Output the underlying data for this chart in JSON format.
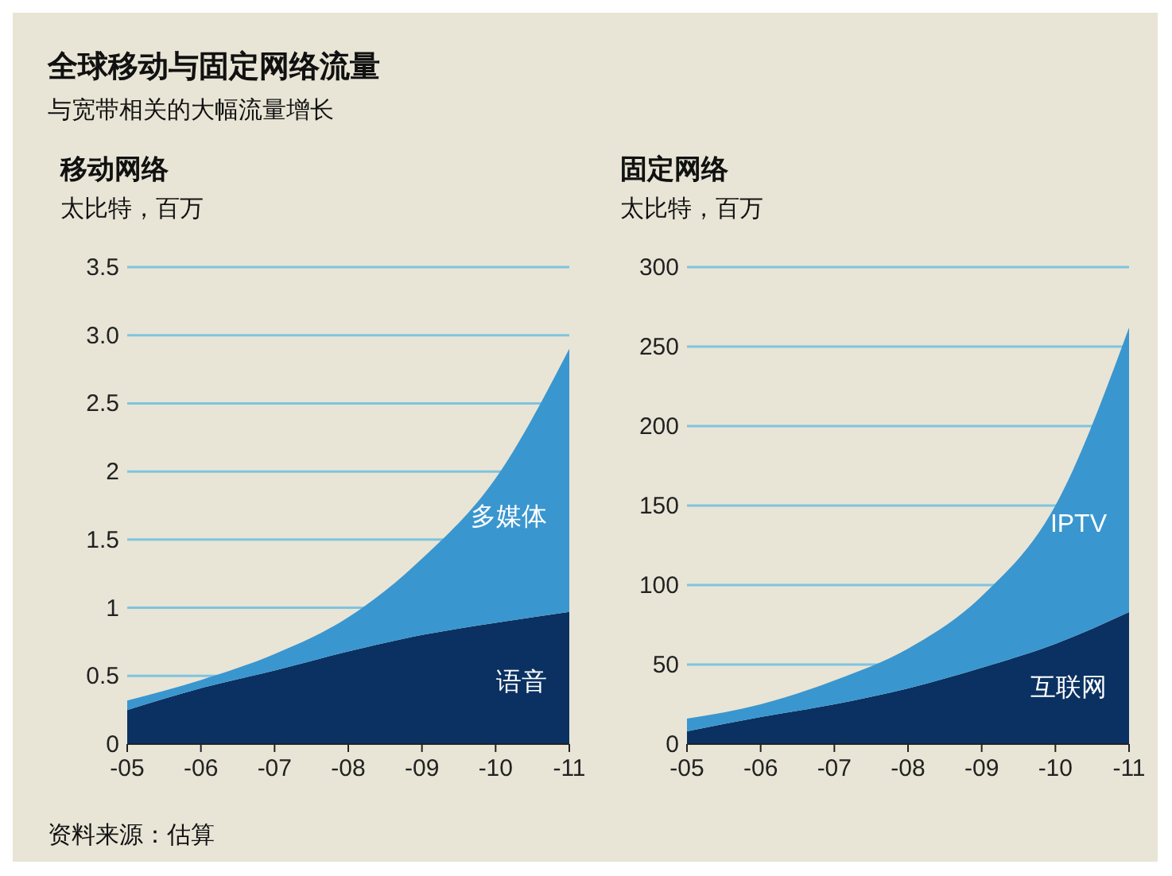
{
  "chart_data": [
    {
      "type": "other",
      "title": "全球移动与固定网络流量",
      "subtitle": "与宽带相关的大幅流量增长",
      "annotations": [
        "资料来源：估算"
      ]
    },
    {
      "type": "area",
      "stacked": true,
      "title": "移动网络",
      "ylabel": "太比特，百万",
      "categories": [
        "-05",
        "-06",
        "-07",
        "-08",
        "-09",
        "-10",
        "-11"
      ],
      "ylim": [
        0,
        3.5
      ],
      "yticks": [
        0,
        0.5,
        1,
        1.5,
        2,
        2.5,
        {
          "value": 3,
          "label": "3.0"
        },
        3.5
      ],
      "grid": "y",
      "series": [
        {
          "name": "语音",
          "color": "#0a3161",
          "values": [
            0.25,
            0.41,
            0.54,
            0.68,
            0.8,
            0.89,
            0.97
          ]
        },
        {
          "name": "多媒体",
          "color": "#3a96cf",
          "values": [
            0.07,
            0.06,
            0.12,
            0.25,
            0.56,
            1.06,
            1.93
          ]
        }
      ]
    },
    {
      "type": "area",
      "stacked": true,
      "title": "固定网络",
      "ylabel": "太比特，百万",
      "categories": [
        "-05",
        "-06",
        "-07",
        "-08",
        "-09",
        "-10",
        "-11"
      ],
      "ylim": [
        0,
        300
      ],
      "yticks": [
        0,
        50,
        100,
        150,
        200,
        250,
        300
      ],
      "grid": "y",
      "series": [
        {
          "name": "互联网",
          "color": "#0a3161",
          "values": [
            8,
            17,
            25,
            35,
            48,
            63,
            83
          ]
        },
        {
          "name": "IPTV",
          "color": "#3a96cf",
          "values": [
            8,
            8,
            15,
            25,
            45,
            87,
            179
          ]
        }
      ]
    }
  ]
}
